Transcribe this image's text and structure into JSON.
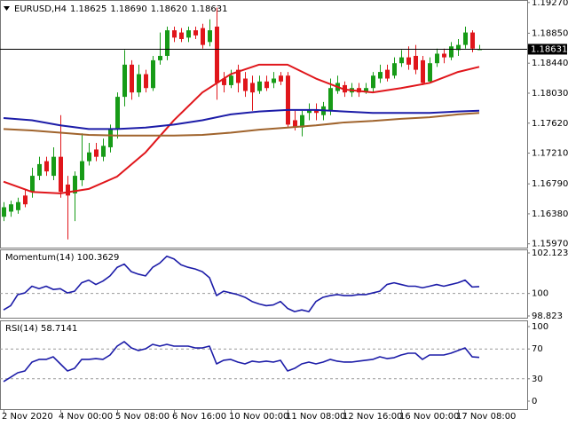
{
  "chart_data": [
    {
      "type": "candlestick",
      "title": "EURUSD,H4",
      "header_values": [
        "1.18625",
        "1.18690",
        "1.18620",
        "1.18631"
      ],
      "categories": [
        "2 Nov 2020",
        null,
        null,
        null,
        null,
        null,
        null,
        null,
        "4 Nov 00:00",
        null,
        null,
        null,
        null,
        null,
        null,
        null,
        "5 Nov 08:00",
        null,
        null,
        null,
        null,
        null,
        null,
        null,
        "6 Nov 16:00",
        null,
        null,
        null,
        null,
        null,
        null,
        null,
        "10 Nov 00:00",
        null,
        null,
        null,
        null,
        null,
        null,
        null,
        "11 Nov 08:00",
        null,
        null,
        null,
        null,
        null,
        null,
        null,
        "12 Nov 16:00",
        null,
        null,
        null,
        null,
        null,
        null,
        null,
        "16 Nov 00:00",
        null,
        null,
        null,
        null,
        null,
        null,
        null,
        "17 Nov 08:00",
        null,
        null,
        null
      ],
      "ohlc": [
        [
          1.1634,
          1.1654,
          1.1628,
          1.1647
        ],
        [
          1.1641,
          1.1656,
          1.1634,
          1.1651
        ],
        [
          1.1643,
          1.166,
          1.1638,
          1.1654
        ],
        [
          1.1663,
          1.1672,
          1.1647,
          1.1651
        ],
        [
          1.1668,
          1.1701,
          1.166,
          1.169
        ],
        [
          1.169,
          1.1716,
          1.1684,
          1.1706
        ],
        [
          1.171,
          1.1716,
          1.169,
          1.1696
        ],
        [
          1.169,
          1.1729,
          1.1684,
          1.1716
        ],
        [
          1.1716,
          1.1773,
          1.166,
          1.1668
        ],
        [
          1.1678,
          1.169,
          1.1603,
          1.1663
        ],
        [
          1.1666,
          1.1696,
          1.1628,
          1.169
        ],
        [
          1.1684,
          1.1748,
          1.1676,
          1.171
        ],
        [
          1.171,
          1.1735,
          1.1704,
          1.1722
        ],
        [
          1.1726,
          1.1735,
          1.171,
          1.1716
        ],
        [
          1.1716,
          1.1741,
          1.171,
          1.1731
        ],
        [
          1.1729,
          1.176,
          1.1722,
          1.1754
        ],
        [
          1.1754,
          1.1804,
          1.1741,
          1.1798
        ],
        [
          1.1798,
          1.1862,
          1.1785,
          1.1842
        ],
        [
          1.1842,
          1.1848,
          1.1794,
          1.1804
        ],
        [
          1.1804,
          1.1842,
          1.1798,
          1.1829
        ],
        [
          1.1829,
          1.1835,
          1.1804,
          1.181
        ],
        [
          1.181,
          1.1854,
          1.1806,
          1.1848
        ],
        [
          1.1848,
          1.1886,
          1.1842,
          1.1854
        ],
        [
          1.1854,
          1.1894,
          1.1848,
          1.1889
        ],
        [
          1.1889,
          1.1894,
          1.1873,
          1.1879
        ],
        [
          1.1886,
          1.1892,
          1.1873,
          1.1877
        ],
        [
          1.1879,
          1.1894,
          1.1873,
          1.1889
        ],
        [
          1.1889,
          1.1894,
          1.1877,
          1.1882
        ],
        [
          1.1892,
          1.1898,
          1.1864,
          1.1869
        ],
        [
          1.1873,
          1.1904,
          1.1867,
          1.1889
        ],
        [
          1.1894,
          1.192,
          1.1794,
          1.1817
        ],
        [
          1.1823,
          1.1832,
          1.1804,
          1.1814
        ],
        [
          1.1814,
          1.1835,
          1.181,
          1.1827
        ],
        [
          1.1835,
          1.1842,
          1.1804,
          1.1817
        ],
        [
          1.1823,
          1.1832,
          1.1798,
          1.1806
        ],
        [
          1.1817,
          1.1827,
          1.1779,
          1.1804
        ],
        [
          1.1806,
          1.1827,
          1.1802,
          1.1819
        ],
        [
          1.1819,
          1.1827,
          1.1806,
          1.181
        ],
        [
          1.1817,
          1.1832,
          1.181,
          1.1823
        ],
        [
          1.1827,
          1.1832,
          1.1814,
          1.1819
        ],
        [
          1.1827,
          1.1832,
          1.1756,
          1.176
        ],
        [
          1.1766,
          1.1779,
          1.1752,
          1.1756
        ],
        [
          1.1756,
          1.1779,
          1.1744,
          1.1773
        ],
        [
          1.1776,
          1.1789,
          1.1766,
          1.1781
        ],
        [
          1.1781,
          1.1789,
          1.1766,
          1.1776
        ],
        [
          1.1773,
          1.1791,
          1.1766,
          1.1785
        ],
        [
          1.1779,
          1.1823,
          1.1773,
          1.181
        ],
        [
          1.1806,
          1.1827,
          1.1802,
          1.1817
        ],
        [
          1.1814,
          1.1819,
          1.1798,
          1.1804
        ],
        [
          1.1804,
          1.1817,
          1.1798,
          1.181
        ],
        [
          1.181,
          1.1817,
          1.1798,
          1.1804
        ],
        [
          1.1804,
          1.1817,
          1.1802,
          1.181
        ],
        [
          1.181,
          1.1832,
          1.1804,
          1.1827
        ],
        [
          1.1823,
          1.1842,
          1.1817,
          1.1832
        ],
        [
          1.1835,
          1.1842,
          1.1819,
          1.1823
        ],
        [
          1.1827,
          1.1852,
          1.1823,
          1.1844
        ],
        [
          1.1844,
          1.1862,
          1.1839,
          1.1852
        ],
        [
          1.1852,
          1.1867,
          1.1835,
          1.1842
        ],
        [
          1.1854,
          1.1869,
          1.1829,
          1.1835
        ],
        [
          1.1848,
          1.1854,
          1.1814,
          1.1817
        ],
        [
          1.1819,
          1.1852,
          1.1817,
          1.1844
        ],
        [
          1.1844,
          1.1864,
          1.1839,
          1.1857
        ],
        [
          1.1857,
          1.1864,
          1.1844,
          1.1852
        ],
        [
          1.1852,
          1.1873,
          1.1848,
          1.1867
        ],
        [
          1.1862,
          1.1877,
          1.1854,
          1.1869
        ],
        [
          1.1869,
          1.1894,
          1.1864,
          1.1886
        ],
        [
          1.1886,
          1.1889,
          1.1859,
          1.1864
        ],
        [
          1.18625,
          1.1869,
          1.1862,
          1.18631
        ]
      ],
      "up_color": "#179b17",
      "down_color": "#e0161b",
      "series": [
        {
          "color": "#e0161b",
          "x": [
            0,
            4,
            8,
            12,
            16,
            20,
            24,
            28,
            32,
            36,
            40,
            44,
            48,
            52,
            56,
            60,
            64,
            67
          ],
          "values": [
            1.1682,
            1.1668,
            1.1666,
            1.1672,
            1.1689,
            1.1722,
            1.1766,
            1.1804,
            1.1829,
            1.1842,
            1.1842,
            1.1823,
            1.1808,
            1.1804,
            1.181,
            1.1817,
            1.1832,
            1.1839
          ]
        },
        {
          "color": "#1c1ca8",
          "x": [
            0,
            4,
            8,
            12,
            16,
            20,
            24,
            28,
            32,
            36,
            40,
            44,
            48,
            52,
            56,
            60,
            64,
            67
          ],
          "values": [
            1.1769,
            1.1766,
            1.1759,
            1.1754,
            1.1754,
            1.1756,
            1.176,
            1.1766,
            1.1774,
            1.1778,
            1.178,
            1.178,
            1.1778,
            1.1776,
            1.1776,
            1.1776,
            1.1778,
            1.1779
          ]
        },
        {
          "color": "#a0642d",
          "x": [
            0,
            4,
            8,
            12,
            16,
            20,
            24,
            28,
            32,
            36,
            40,
            44,
            48,
            52,
            56,
            60,
            64,
            67
          ],
          "values": [
            1.1754,
            1.1752,
            1.1749,
            1.1746,
            1.1745,
            1.1745,
            1.1745,
            1.1746,
            1.1749,
            1.1753,
            1.1756,
            1.1759,
            1.1763,
            1.1765,
            1.1768,
            1.177,
            1.1774,
            1.1776
          ]
        }
      ],
      "ylim": [
        1.1593,
        1.1928
      ],
      "yticks": [
        {
          "value": 1.1927,
          "label": "1.19270"
        },
        {
          "value": 1.1885,
          "label": "1.18850"
        },
        {
          "value": 1.1844,
          "label": "1.18440"
        },
        {
          "value": 1.1803,
          "label": "1.18030"
        },
        {
          "value": 1.1762,
          "label": "1.17620"
        },
        {
          "value": 1.1721,
          "label": "1.17210"
        },
        {
          "value": 1.1679,
          "label": "1.16790"
        },
        {
          "value": 1.1638,
          "label": "1.16380"
        },
        {
          "value": 1.1597,
          "label": "1.15970"
        }
      ],
      "grid": false
    },
    {
      "type": "line",
      "title": "Momentum(14) 100.3629",
      "series": [
        {
          "color": "#1c1ca8",
          "values": [
            99.14,
            99.36,
            99.94,
            100.03,
            100.38,
            100.25,
            100.38,
            100.21,
            100.25,
            100.03,
            100.12,
            100.56,
            100.7,
            100.47,
            100.65,
            100.92,
            101.37,
            101.54,
            101.14,
            101.01,
            100.92,
            101.37,
            101.59,
            101.95,
            101.81,
            101.5,
            101.37,
            101.28,
            101.14,
            100.83,
            99.89,
            100.12,
            100.03,
            99.94,
            99.8,
            99.58,
            99.45,
            99.36,
            99.4,
            99.58,
            99.22,
            99.05,
            99.14,
            99.05,
            99.58,
            99.8,
            99.89,
            99.94,
            99.89,
            99.89,
            99.94,
            99.94,
            100.03,
            100.12,
            100.47,
            100.56,
            100.47,
            100.38,
            100.38,
            100.3,
            100.38,
            100.47,
            100.38,
            100.47,
            100.56,
            100.7,
            100.34,
            100.36
          ]
        }
      ],
      "ylim": [
        98.823,
        102.1237
      ],
      "yticks": [
        102.1237,
        100,
        98.823
      ],
      "grid": true
    },
    {
      "type": "line",
      "title": "RSI(14) 58.7141",
      "series": [
        {
          "color": "#1c1ca8",
          "values": [
            26.2,
            32.1,
            38.1,
            40.5,
            52.4,
            56.0,
            56.0,
            59.5,
            50.0,
            40.5,
            44.0,
            56.0,
            56.0,
            57.1,
            56.0,
            61.9,
            73.8,
            79.8,
            71.4,
            67.9,
            70.2,
            76.2,
            73.8,
            76.2,
            73.8,
            73.8,
            73.8,
            71.4,
            71.4,
            73.8,
            50.0,
            54.8,
            56.0,
            52.4,
            50.0,
            53.6,
            52.4,
            53.6,
            52.4,
            54.8,
            40.5,
            44.0,
            50.0,
            52.4,
            50.0,
            52.4,
            56.0,
            53.6,
            52.4,
            52.4,
            53.6,
            54.8,
            56.0,
            59.5,
            57.1,
            58.3,
            61.9,
            64.3,
            64.3,
            56.0,
            61.9,
            61.9,
            61.9,
            64.3,
            67.9,
            71.4,
            59.5,
            58.7
          ]
        }
      ],
      "ylim": [
        0,
        100
      ],
      "yticks": [
        100,
        70,
        30,
        0
      ],
      "grid": true
    }
  ]
}
